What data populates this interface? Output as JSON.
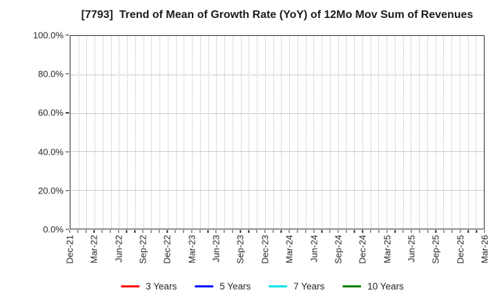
{
  "title": "[7793]  Trend of Mean of Growth Rate (YoY) of 12Mo Mov Sum of Revenues",
  "chart_data": {
    "type": "line",
    "title": "[7793]  Trend of Mean of Growth Rate (YoY) of 12Mo Mov Sum of Revenues",
    "x_tick_labels": [
      "Dec-21",
      "Mar-22",
      "Jun-22",
      "Sep-22",
      "Dec-22",
      "Mar-23",
      "Jun-23",
      "Sep-23",
      "Dec-23",
      "Mar-24",
      "Jun-24",
      "Sep-24",
      "Dec-24",
      "Mar-25",
      "Jun-25",
      "Sep-25",
      "Dec-25",
      "Mar-26"
    ],
    "y_tick_labels": [
      "0.0%",
      "20.0%",
      "40.0%",
      "60.0%",
      "80.0%",
      "100.0%"
    ],
    "y_ticks_percent": [
      0,
      20,
      40,
      60,
      80,
      100
    ],
    "ylim": [
      0,
      100
    ],
    "months_per_labeled_tick": 3,
    "minor_vertical_gridlines": "monthly",
    "grid_style": "dotted",
    "grid_on": true,
    "legend_position": "bottom-center",
    "plot_is_empty": true,
    "series": [
      {
        "name": "3 Years",
        "color": "#ff0000",
        "values": []
      },
      {
        "name": "5 Years",
        "color": "#0000ff",
        "values": []
      },
      {
        "name": "7 Years",
        "color": "#00e5ee",
        "values": []
      },
      {
        "name": "10 Years",
        "color": "#008000",
        "values": []
      }
    ]
  }
}
